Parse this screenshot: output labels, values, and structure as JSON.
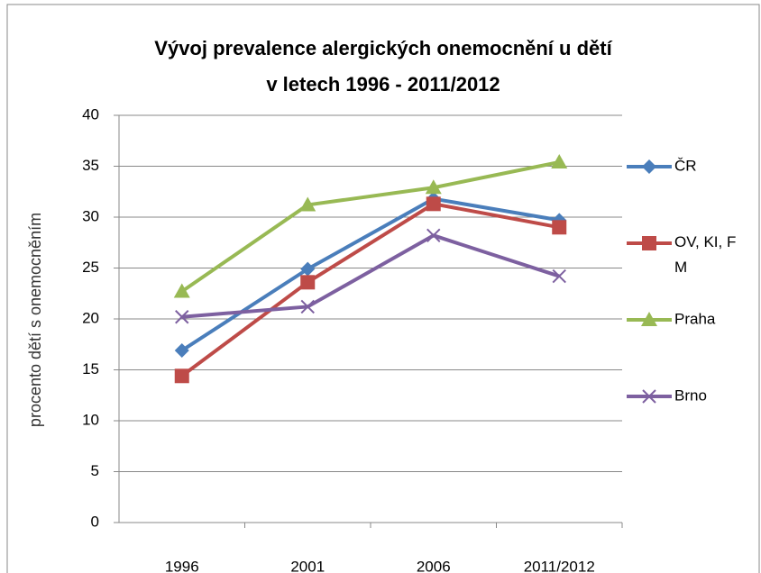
{
  "chart_data": {
    "type": "line",
    "title": [
      "Vývoj prevalence alergických onemocnění u dětí",
      "v letech 1996 - 2011/2012"
    ],
    "y_label": "procento dětí s onemocněním",
    "categories": [
      "1996",
      "2001",
      "2006",
      "2011/2012"
    ],
    "series": [
      {
        "name": "ČR",
        "color": "#4a7ebb",
        "marker": "diamond",
        "values": [
          16.9,
          24.9,
          31.8,
          29.7
        ]
      },
      {
        "name": "OV, KI, F M",
        "color": "#be4b48",
        "marker": "square",
        "values": [
          14.4,
          23.6,
          31.3,
          29.0
        ]
      },
      {
        "name": "Praha",
        "color": "#98b954",
        "marker": "triangle",
        "values": [
          22.7,
          31.2,
          32.9,
          35.4
        ]
      },
      {
        "name": "Brno",
        "color": "#7d60a0",
        "marker": "x",
        "values": [
          20.2,
          21.2,
          28.2,
          24.2
        ]
      }
    ],
    "ylim": [
      0,
      40
    ],
    "yticks": [
      0,
      5,
      10,
      15,
      20,
      25,
      30,
      35,
      40
    ],
    "grid": true,
    "legend": "right"
  }
}
